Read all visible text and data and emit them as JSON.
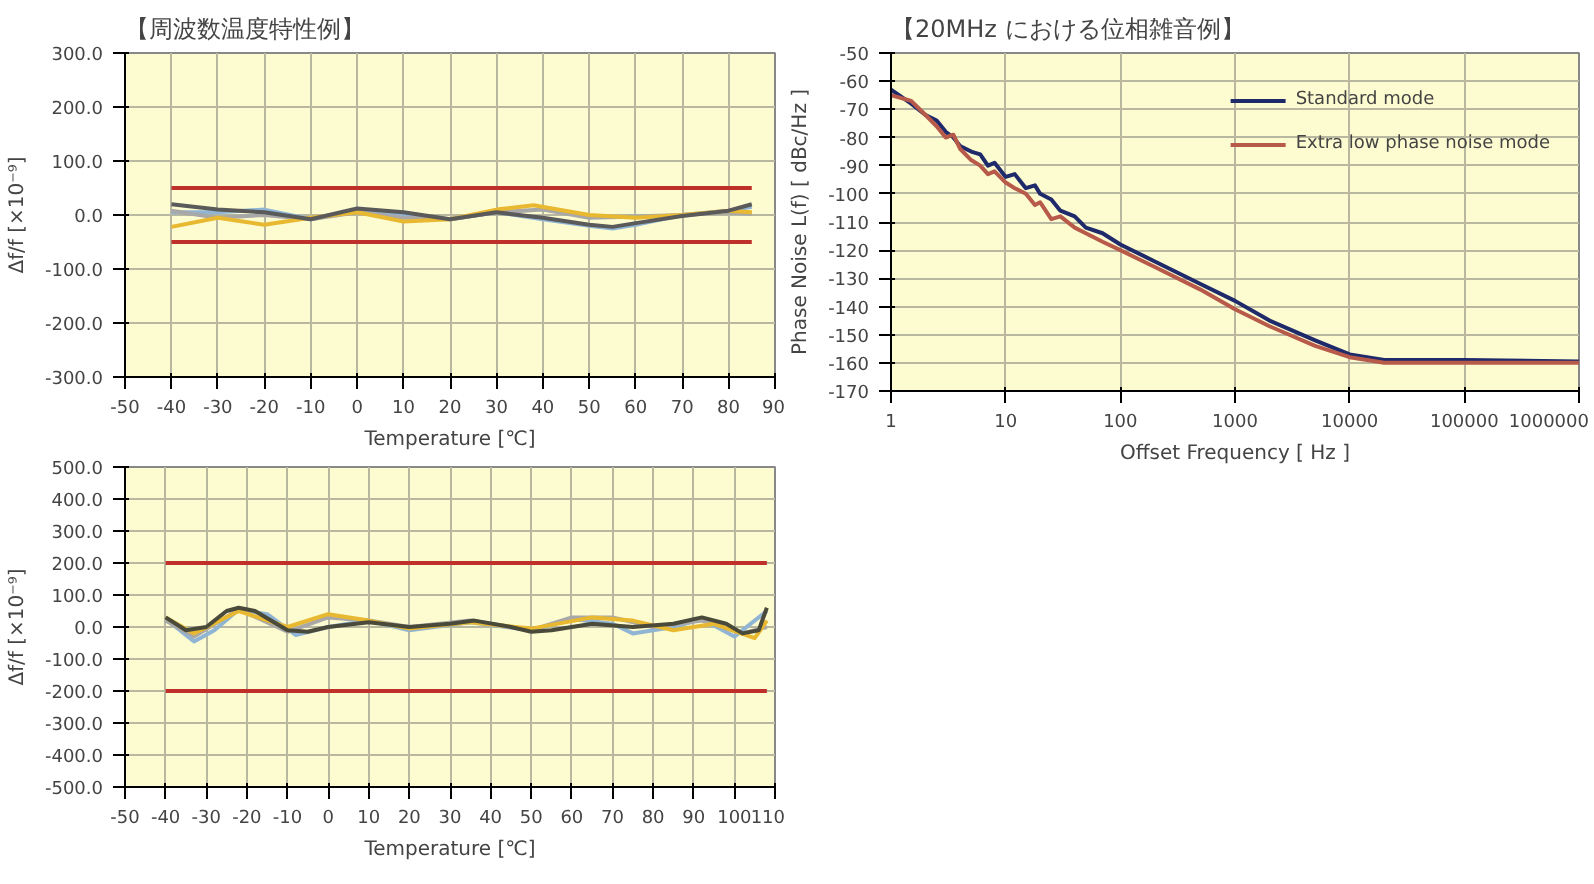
{
  "chart_data": [
    {
      "type": "line",
      "title": "【周波数温度特性例】",
      "xlabel": "Temperature [℃]",
      "ylabel": "Δf/f [×10⁻⁹]",
      "xlim": [
        -50,
        90
      ],
      "ylim": [
        -300,
        300
      ],
      "xticks": [
        -50,
        -40,
        -30,
        -20,
        -10,
        0,
        10,
        20,
        30,
        40,
        50,
        60,
        70,
        80,
        90
      ],
      "yticks": [
        {
          "value": -300,
          "label": "-300.0"
        },
        {
          "value": -200,
          "label": "-200.0"
        },
        {
          "value": -100,
          "label": "-100.0"
        },
        {
          "value": 0,
          "label": "0.0"
        },
        {
          "value": 100,
          "label": "100.0"
        },
        {
          "value": 200,
          "label": "200.0"
        },
        {
          "value": 300,
          "label": "300.0"
        }
      ],
      "grid": true,
      "series": [
        {
          "color": "#c0302b",
          "x": [
            -40,
            85
          ],
          "values": [
            50,
            50
          ]
        },
        {
          "color": "#c0302b",
          "x": [
            -40,
            85
          ],
          "values": [
            -50,
            -50
          ]
        },
        {
          "color": "#8fb4d4",
          "x": [
            -40,
            -30,
            -20,
            -10,
            0,
            10,
            20,
            30,
            40,
            50,
            55,
            60,
            70,
            80,
            85
          ],
          "values": [
            5,
            5,
            10,
            -8,
            10,
            2,
            -8,
            5,
            -8,
            -20,
            -25,
            -18,
            0,
            8,
            15
          ]
        },
        {
          "color": "#a8a8a8",
          "x": [
            -40,
            -30,
            -20,
            -10,
            0,
            10,
            20,
            30,
            40,
            50,
            60,
            70,
            80,
            85
          ],
          "values": [
            8,
            -5,
            0,
            -8,
            5,
            -5,
            -8,
            5,
            10,
            -5,
            -3,
            0,
            5,
            2
          ]
        },
        {
          "color": "#e8b830",
          "x": [
            -40,
            -30,
            -20,
            -10,
            0,
            10,
            20,
            30,
            38,
            50,
            60,
            70,
            80,
            85
          ],
          "values": [
            -22,
            -5,
            -18,
            -5,
            5,
            -12,
            -8,
            10,
            18,
            0,
            -5,
            0,
            8,
            5
          ]
        },
        {
          "color": "#5a5a5a",
          "x": [
            -40,
            -30,
            -20,
            -10,
            0,
            10,
            20,
            30,
            40,
            50,
            55,
            60,
            70,
            80,
            85
          ],
          "values": [
            20,
            10,
            5,
            -8,
            12,
            5,
            -8,
            5,
            -5,
            -18,
            -22,
            -15,
            -2,
            8,
            20
          ]
        }
      ]
    },
    {
      "type": "line",
      "xlabel": "Temperature [℃]",
      "ylabel": "Δf/f [×10⁻⁹]",
      "xlim": [
        -50,
        110
      ],
      "ylim": [
        -500,
        500
      ],
      "xticks": [
        -50,
        -40,
        -30,
        -20,
        -10,
        0,
        10,
        20,
        30,
        40,
        50,
        60,
        70,
        80,
        90,
        100,
        110
      ],
      "yticks": [
        {
          "value": -500,
          "label": "-500.0"
        },
        {
          "value": -400,
          "label": "-400.0"
        },
        {
          "value": -300,
          "label": "-300.0"
        },
        {
          "value": -200,
          "label": "-200.0"
        },
        {
          "value": -100,
          "label": "-100.0"
        },
        {
          "value": 0,
          "label": "0.0"
        },
        {
          "value": 100,
          "label": "100.0"
        },
        {
          "value": 200,
          "label": "200.0"
        },
        {
          "value": 300,
          "label": "300.0"
        },
        {
          "value": 400,
          "label": "400.0"
        },
        {
          "value": 500,
          "label": "500.0"
        }
      ],
      "grid": true,
      "series": [
        {
          "color": "#c0302b",
          "x": [
            -40,
            108
          ],
          "values": [
            200,
            200
          ]
        },
        {
          "color": "#c0302b",
          "x": [
            -40,
            108
          ],
          "values": [
            -200,
            -200
          ]
        },
        {
          "color": "#8fb4d4",
          "x": [
            -40,
            -33,
            -28,
            -22,
            -15,
            -8,
            0,
            10,
            20,
            35,
            50,
            60,
            70,
            75,
            85,
            92,
            100,
            108
          ],
          "values": [
            25,
            -45,
            -10,
            55,
            40,
            -25,
            0,
            20,
            -10,
            15,
            -10,
            25,
            10,
            -20,
            0,
            25,
            -30,
            50
          ]
        },
        {
          "color": "#a8a8a8",
          "x": [
            -40,
            -33,
            -22,
            -10,
            0,
            10,
            20,
            35,
            50,
            60,
            70,
            80,
            92,
            102,
            108
          ],
          "values": [
            20,
            -30,
            55,
            -15,
            30,
            20,
            0,
            20,
            -10,
            30,
            30,
            0,
            20,
            -20,
            0
          ]
        },
        {
          "color": "#e8b830",
          "x": [
            -40,
            -33,
            -22,
            -10,
            0,
            10,
            20,
            35,
            50,
            65,
            75,
            85,
            95,
            105,
            108
          ],
          "values": [
            30,
            -20,
            50,
            0,
            40,
            20,
            -5,
            15,
            -5,
            30,
            20,
            -10,
            10,
            -35,
            20
          ]
        },
        {
          "color": "#4a4a3a",
          "x": [
            -40,
            -35,
            -30,
            -25,
            -22,
            -18,
            -10,
            -5,
            0,
            10,
            20,
            30,
            36,
            45,
            50,
            55,
            65,
            75,
            85,
            92,
            98,
            102,
            106,
            108
          ],
          "values": [
            30,
            -10,
            0,
            50,
            60,
            50,
            -10,
            -15,
            0,
            15,
            0,
            10,
            20,
            0,
            -15,
            -10,
            10,
            0,
            10,
            30,
            10,
            -20,
            -10,
            60
          ]
        }
      ]
    },
    {
      "type": "line",
      "title": "【20MHz における位相雑音例】",
      "xlabel": "Offset Frequency [ Hz ]",
      "ylabel": "Phase Noise L(f) [ dBc/Hz ]",
      "log": "x",
      "xlim": [
        1,
        1000000
      ],
      "ylim": [
        -170,
        -50
      ],
      "xticks": [
        1,
        10,
        100,
        1000,
        10000,
        100000,
        1000000
      ],
      "yticks": [
        -170,
        -160,
        -150,
        -140,
        -130,
        -120,
        -110,
        -100,
        -90,
        -80,
        -70,
        -60,
        -50
      ],
      "grid": true,
      "legend": "top right",
      "series": [
        {
          "name": "Standard mode",
          "color": "#1f2a6b",
          "x": [
            1,
            1.5,
            2,
            2.5,
            3,
            3.5,
            4,
            5,
            6,
            7,
            8,
            10,
            12,
            15,
            18,
            20,
            25,
            30,
            40,
            50,
            70,
            100,
            200,
            500,
            1000,
            2000,
            5000,
            10000,
            20000,
            100000,
            1000000
          ],
          "values": [
            -63,
            -68,
            -72,
            -74,
            -78,
            -80,
            -83,
            -85,
            -86,
            -90,
            -89,
            -94,
            -93,
            -98,
            -97,
            -100,
            -102,
            -106,
            -108,
            -112,
            -114,
            -118,
            -124,
            -132,
            -138,
            -145,
            -152,
            -157,
            -159,
            -159,
            -159.5
          ]
        },
        {
          "name": "Extra low phase noise mode",
          "color": "#b85a4a",
          "x": [
            1,
            1.5,
            2,
            2.5,
            3,
            3.5,
            4,
            5,
            6,
            7,
            8,
            10,
            12,
            15,
            18,
            20,
            25,
            30,
            40,
            50,
            70,
            100,
            200,
            500,
            1000,
            2000,
            5000,
            10000,
            20000,
            100000,
            1000000
          ],
          "values": [
            -65,
            -67,
            -72,
            -76,
            -80,
            -79,
            -84,
            -88,
            -90,
            -93,
            -92,
            -96,
            -98,
            -100,
            -104,
            -103,
            -109,
            -108,
            -112,
            -114,
            -117,
            -120,
            -126,
            -134,
            -141,
            -147,
            -154,
            -158,
            -160,
            -160,
            -160
          ]
        }
      ]
    }
  ]
}
